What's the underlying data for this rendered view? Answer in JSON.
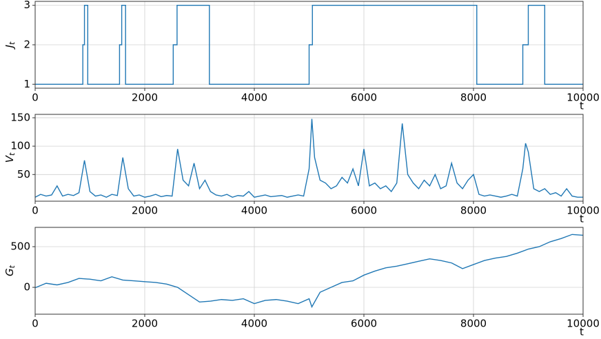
{
  "chart_data": [
    {
      "type": "line",
      "drawstyle": "steps-post",
      "ylabel": "J_t",
      "xlabel": "t",
      "color": "#1f77b4",
      "grid": true,
      "x": [
        0,
        870,
        900,
        960,
        1540,
        1580,
        1650,
        2520,
        2590,
        3180,
        5000,
        5060,
        8060,
        8900,
        9000,
        9300,
        10000
      ],
      "values": [
        1,
        2,
        3,
        1,
        2,
        3,
        1,
        2,
        3,
        1,
        2,
        3,
        1,
        2,
        3,
        1,
        1
      ],
      "xlim": [
        0,
        10000
      ],
      "xticks": [
        0,
        2000,
        4000,
        6000,
        8000,
        10000
      ],
      "ylim": [
        0.9,
        3.1
      ],
      "yticks": [
        1,
        2,
        3
      ]
    },
    {
      "type": "line",
      "ylabel": "V_t",
      "xlabel": "t",
      "color": "#1f77b4",
      "grid": true,
      "x": [
        0,
        100,
        200,
        300,
        400,
        500,
        600,
        700,
        800,
        900,
        1000,
        1100,
        1200,
        1300,
        1400,
        1500,
        1600,
        1700,
        1800,
        1900,
        2000,
        2100,
        2200,
        2300,
        2400,
        2500,
        2600,
        2700,
        2800,
        2900,
        3000,
        3100,
        3200,
        3300,
        3400,
        3500,
        3600,
        3700,
        3800,
        3900,
        4000,
        4100,
        4200,
        4300,
        4400,
        4500,
        4600,
        4700,
        4800,
        4900,
        5000,
        5050,
        5100,
        5200,
        5300,
        5400,
        5500,
        5600,
        5700,
        5800,
        5900,
        6000,
        6100,
        6200,
        6300,
        6400,
        6500,
        6600,
        6700,
        6800,
        6900,
        7000,
        7100,
        7200,
        7300,
        7400,
        7500,
        7600,
        7700,
        7800,
        7900,
        8000,
        8100,
        8200,
        8300,
        8400,
        8500,
        8600,
        8700,
        8800,
        8900,
        8950,
        9000,
        9100,
        9200,
        9300,
        9400,
        9500,
        9600,
        9700,
        9800,
        9900,
        10000
      ],
      "values": [
        10,
        15,
        12,
        14,
        30,
        12,
        15,
        13,
        18,
        75,
        20,
        12,
        14,
        10,
        15,
        13,
        80,
        25,
        12,
        14,
        10,
        12,
        15,
        11,
        13,
        12,
        95,
        40,
        30,
        70,
        25,
        40,
        20,
        14,
        12,
        15,
        10,
        13,
        12,
        20,
        10,
        12,
        14,
        11,
        12,
        13,
        10,
        12,
        14,
        12,
        60,
        148,
        80,
        40,
        35,
        25,
        30,
        45,
        35,
        60,
        30,
        95,
        30,
        35,
        25,
        30,
        20,
        35,
        140,
        50,
        35,
        25,
        40,
        30,
        50,
        25,
        30,
        70,
        35,
        25,
        40,
        50,
        15,
        12,
        14,
        12,
        10,
        12,
        15,
        12,
        60,
        105,
        90,
        25,
        20,
        25,
        15,
        18,
        12,
        25,
        12,
        10,
        10
      ],
      "xlim": [
        0,
        10000
      ],
      "xticks": [
        0,
        2000,
        4000,
        6000,
        8000,
        10000
      ],
      "ylim": [
        3,
        156
      ],
      "yticks": [
        50,
        100,
        150
      ]
    },
    {
      "type": "line",
      "ylabel": "G_t",
      "xlabel": "t",
      "color": "#1f77b4",
      "grid": true,
      "x": [
        0,
        200,
        400,
        600,
        800,
        1000,
        1200,
        1400,
        1600,
        1800,
        2000,
        2200,
        2400,
        2600,
        2800,
        3000,
        3200,
        3400,
        3600,
        3800,
        4000,
        4200,
        4400,
        4600,
        4800,
        5000,
        5050,
        5200,
        5400,
        5600,
        5800,
        6000,
        6200,
        6400,
        6600,
        6800,
        7000,
        7200,
        7400,
        7600,
        7800,
        8000,
        8200,
        8400,
        8600,
        8800,
        9000,
        9200,
        9400,
        9600,
        9800,
        10000
      ],
      "values": [
        -5,
        50,
        30,
        60,
        110,
        100,
        80,
        130,
        90,
        80,
        70,
        60,
        40,
        0,
        -90,
        -180,
        -170,
        -150,
        -160,
        -140,
        -200,
        -160,
        -150,
        -170,
        -200,
        -140,
        -240,
        -60,
        0,
        60,
        80,
        150,
        200,
        240,
        260,
        290,
        320,
        350,
        330,
        300,
        230,
        280,
        330,
        360,
        380,
        420,
        470,
        500,
        560,
        600,
        650,
        640
      ],
      "xlim": [
        0,
        10000
      ],
      "xticks": [
        0,
        2000,
        4000,
        6000,
        8000,
        10000
      ],
      "ylim": [
        -330,
        737
      ],
      "yticks": [
        0,
        500
      ]
    }
  ]
}
